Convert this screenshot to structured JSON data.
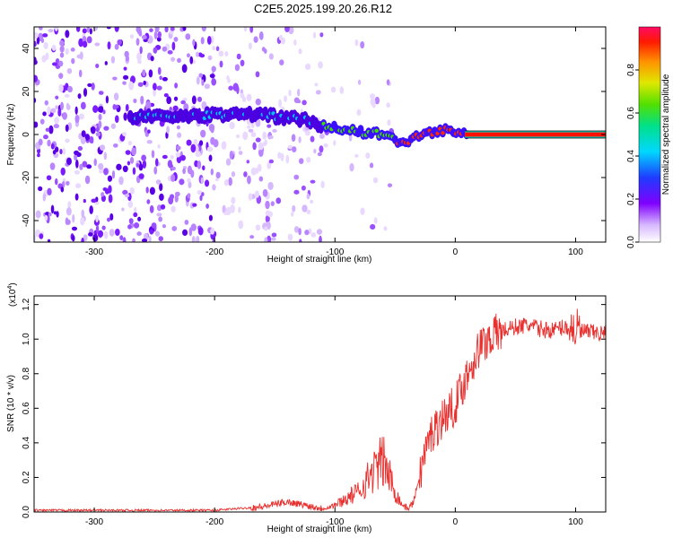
{
  "title": "C2E5.2025.199.20.26.R12",
  "chart_data": [
    {
      "type": "heatmap",
      "xlabel": "Height of straight line (km)",
      "ylabel": "Frequency (Hz)",
      "xlim": [
        -350,
        125
      ],
      "ylim": [
        -50,
        50
      ],
      "xticks": [
        "-300",
        "-200",
        "-100",
        "0",
        "100"
      ],
      "yticks": [
        "-40",
        "-20",
        "0",
        "20",
        "40"
      ],
      "colorbar": {
        "label": "Normalized spectral amplitude",
        "range": [
          0,
          1
        ],
        "ticks": [
          "0.0",
          "0.2",
          "0.4",
          "0.6",
          "0.8"
        ]
      },
      "ridge": {
        "x": [
          -270,
          -240,
          -200,
          -180,
          -160,
          -140,
          -120,
          -100,
          -80,
          -60,
          -45,
          -35,
          -20,
          -10,
          0,
          10,
          125
        ],
        "y": [
          8,
          8,
          9,
          10,
          9,
          8,
          6,
          3,
          1,
          0,
          -4,
          -2,
          1,
          2,
          1,
          0,
          0
        ]
      },
      "grid": false
    },
    {
      "type": "line",
      "xlabel": "Height of straight line (km)",
      "ylabel": "SNR (10 * v/v)",
      "scale_label": "(x10",
      "scale_exp": "4",
      "scale_close": ")",
      "xlim": [
        -350,
        125
      ],
      "ylim": [
        0,
        1.25
      ],
      "xticks": [
        "-300",
        "-200",
        "-100",
        "0",
        "100"
      ],
      "yticks": [
        "0.0",
        "0.2",
        "0.4",
        "0.6",
        "0.8",
        "1.0",
        "1.2"
      ],
      "series": [
        {
          "color": "#e8302e",
          "x": [
            -350,
            -200,
            -160,
            -140,
            -110,
            -100,
            -90,
            -80,
            -70,
            -60,
            -50,
            -45,
            -40,
            -35,
            -30,
            -25,
            -20,
            -10,
            0,
            10,
            20,
            30,
            40,
            50,
            60,
            70,
            80,
            90,
            100,
            110,
            125
          ],
          "y": [
            0.01,
            0.01,
            0.03,
            0.06,
            0.02,
            0.04,
            0.08,
            0.12,
            0.22,
            0.3,
            0.12,
            0.05,
            0.02,
            0.05,
            0.2,
            0.35,
            0.45,
            0.55,
            0.62,
            0.8,
            0.95,
            1.02,
            1.05,
            1.07,
            1.08,
            1.06,
            1.05,
            1.07,
            1.06,
            1.04,
            1.03
          ]
        }
      ],
      "grid": false
    }
  ]
}
